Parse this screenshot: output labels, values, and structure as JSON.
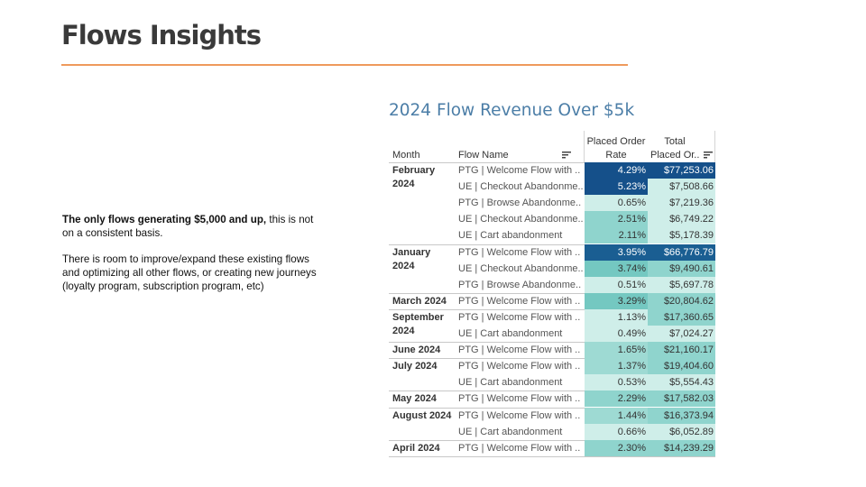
{
  "slide": {
    "title": "Flows Insights"
  },
  "left_text": {
    "bold": "The only flows generating $5,000 and up,",
    "rest": " this is not on a consistent basis.",
    "paragraph2": "There is room to improve/expand these existing flows and optimizing all other flows, or creating new journeys (loyalty program, subscription program, etc)"
  },
  "table": {
    "title": "2024 Flow Revenue Over $5k",
    "headers": {
      "month": "Month",
      "flow_name": "Flow Name",
      "rate_line1": "Placed Order",
      "rate_line2": "Rate",
      "revenue_line1": "Total",
      "revenue_line2": "Placed Or.."
    },
    "colors": {
      "light": "#cfeee9",
      "mid": "#8fd4cd",
      "dark": "#1a5e92",
      "darkest": "#15508a"
    },
    "groups": [
      {
        "month": "February 2024",
        "rows": [
          {
            "flow": "PTG | Welcome Flow with ..",
            "rate": "4.29%",
            "revenue": "$77,253.06",
            "rate_value": 4.29,
            "revenue_value": 77253.06
          },
          {
            "flow": "UE | Checkout Abandonme..",
            "rate": "5.23%",
            "revenue": "$7,508.66",
            "rate_value": 5.23,
            "revenue_value": 7508.66
          },
          {
            "flow": "PTG | Browse Abandonme..",
            "rate": "0.65%",
            "revenue": "$7,219.36",
            "rate_value": 0.65,
            "revenue_value": 7219.36
          },
          {
            "flow": "UE | Checkout Abandonme..",
            "rate": "2.51%",
            "revenue": "$6,749.22",
            "rate_value": 2.51,
            "revenue_value": 6749.22
          },
          {
            "flow": "UE | Cart abandonment",
            "rate": "2.11%",
            "revenue": "$5,178.39",
            "rate_value": 2.11,
            "revenue_value": 5178.39
          }
        ]
      },
      {
        "month": "January 2024",
        "rows": [
          {
            "flow": "PTG | Welcome Flow with ..",
            "rate": "3.95%",
            "revenue": "$66,776.79",
            "rate_value": 3.95,
            "revenue_value": 66776.79
          },
          {
            "flow": "UE | Checkout Abandonme..",
            "rate": "3.74%",
            "revenue": "$9,490.61",
            "rate_value": 3.74,
            "revenue_value": 9490.61
          },
          {
            "flow": "PTG | Browse Abandonme..",
            "rate": "0.51%",
            "revenue": "$5,697.78",
            "rate_value": 0.51,
            "revenue_value": 5697.78
          }
        ]
      },
      {
        "month": "March 2024",
        "rows": [
          {
            "flow": "PTG | Welcome Flow with ..",
            "rate": "3.29%",
            "revenue": "$20,804.62",
            "rate_value": 3.29,
            "revenue_value": 20804.62
          }
        ]
      },
      {
        "month": "September 2024",
        "rows": [
          {
            "flow": "PTG | Welcome Flow with ..",
            "rate": "1.13%",
            "revenue": "$17,360.65",
            "rate_value": 1.13,
            "revenue_value": 17360.65
          },
          {
            "flow": "UE | Cart abandonment",
            "rate": "0.49%",
            "revenue": "$7,024.27",
            "rate_value": 0.49,
            "revenue_value": 7024.27
          }
        ]
      },
      {
        "month": "June 2024",
        "rows": [
          {
            "flow": "PTG | Welcome Flow with ..",
            "rate": "1.65%",
            "revenue": "$21,160.17",
            "rate_value": 1.65,
            "revenue_value": 21160.17
          }
        ]
      },
      {
        "month": "July 2024",
        "rows": [
          {
            "flow": "PTG | Welcome Flow with ..",
            "rate": "1.37%",
            "revenue": "$19,404.60",
            "rate_value": 1.37,
            "revenue_value": 19404.6
          },
          {
            "flow": "UE | Cart abandonment",
            "rate": "0.53%",
            "revenue": "$5,554.43",
            "rate_value": 0.53,
            "revenue_value": 5554.43
          }
        ]
      },
      {
        "month": "May 2024",
        "rows": [
          {
            "flow": "PTG | Welcome Flow with ..",
            "rate": "2.29%",
            "revenue": "$17,582.03",
            "rate_value": 2.29,
            "revenue_value": 17582.03
          }
        ]
      },
      {
        "month": "August 2024",
        "rows": [
          {
            "flow": "PTG | Welcome Flow with ..",
            "rate": "1.44%",
            "revenue": "$16,373.94",
            "rate_value": 1.44,
            "revenue_value": 16373.94
          },
          {
            "flow": "UE | Cart abandonment",
            "rate": "0.66%",
            "revenue": "$6,052.89",
            "rate_value": 0.66,
            "revenue_value": 6052.89
          }
        ]
      },
      {
        "month": "April 2024",
        "rows": [
          {
            "flow": "PTG | Welcome Flow with ..",
            "rate": "2.30%",
            "revenue": "$14,239.29",
            "rate_value": 2.3,
            "revenue_value": 14239.29
          }
        ]
      }
    ]
  }
}
